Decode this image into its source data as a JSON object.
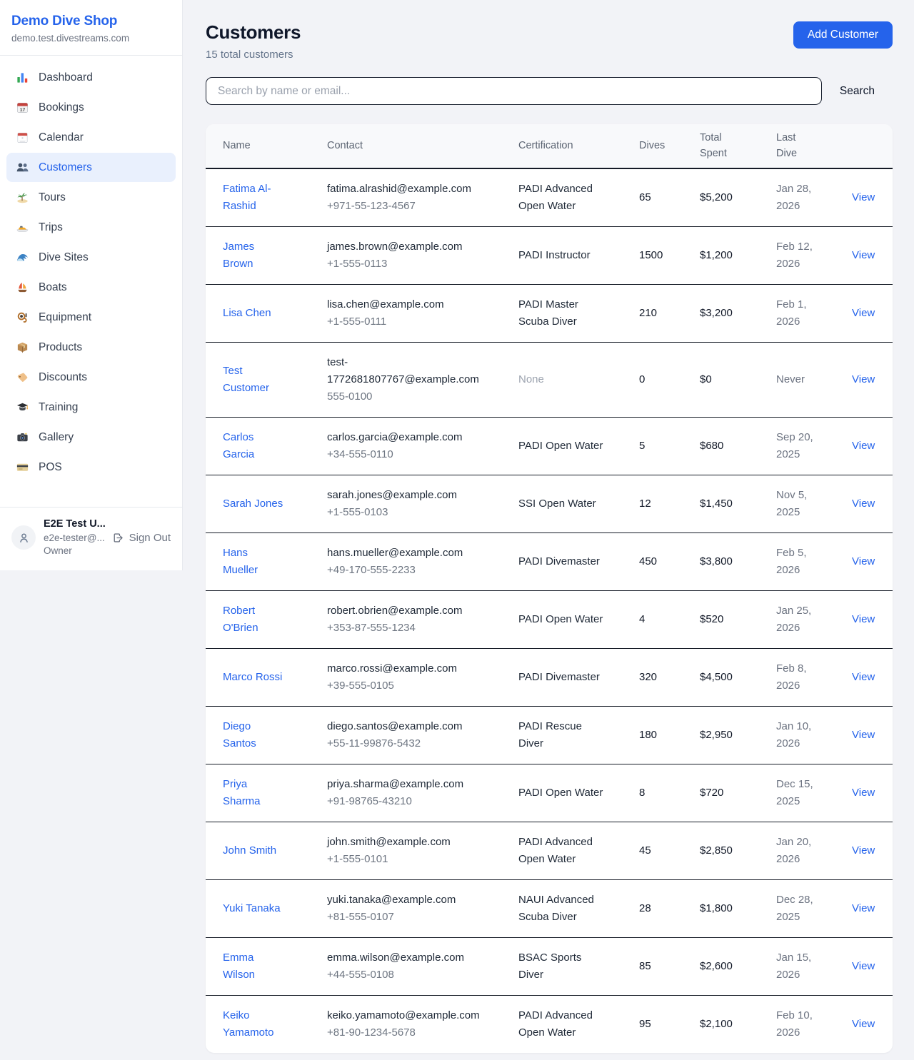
{
  "colors": {
    "accent": "#2563eb",
    "active_item_bg": "#e9f0fd",
    "table_border": "#151b26"
  },
  "sidebar": {
    "title": "Demo Dive Shop",
    "subdomain": "demo.test.divestreams.com",
    "items": [
      {
        "label": "Dashboard",
        "icon": "dashboard-icon",
        "active": false
      },
      {
        "label": "Bookings",
        "icon": "bookings-icon",
        "active": false
      },
      {
        "label": "Calendar",
        "icon": "calendar-icon",
        "active": false
      },
      {
        "label": "Customers",
        "icon": "customers-icon",
        "active": true
      },
      {
        "label": "Tours",
        "icon": "tours-icon",
        "active": false
      },
      {
        "label": "Trips",
        "icon": "trips-icon",
        "active": false
      },
      {
        "label": "Dive Sites",
        "icon": "dive-sites-icon",
        "active": false
      },
      {
        "label": "Boats",
        "icon": "boats-icon",
        "active": false
      },
      {
        "label": "Equipment",
        "icon": "equipment-icon",
        "active": false
      },
      {
        "label": "Products",
        "icon": "products-icon",
        "active": false
      },
      {
        "label": "Discounts",
        "icon": "discounts-icon",
        "active": false
      },
      {
        "label": "Training",
        "icon": "training-icon",
        "active": false
      },
      {
        "label": "Gallery",
        "icon": "gallery-icon",
        "active": false
      },
      {
        "label": "POS",
        "icon": "pos-icon",
        "active": false
      }
    ],
    "user": {
      "name": "E2E Test U...",
      "email": "e2e-tester@...",
      "role": "Owner",
      "sign_out_label": "Sign Out"
    }
  },
  "header": {
    "title": "Customers",
    "subtitle": "15 total customers",
    "add_button_label": "Add Customer"
  },
  "search": {
    "placeholder": "Search by name or email...",
    "button_label": "Search"
  },
  "table": {
    "columns": [
      "Name",
      "Contact",
      "Certification",
      "Dives",
      "Total Spent",
      "Last Dive",
      ""
    ],
    "rows": [
      {
        "name": "Fatima Al-Rashid",
        "email": "fatima.alrashid@example.com",
        "phone": "+971-55-123-4567",
        "certification": "PADI Advanced Open Water",
        "dives": "65",
        "total_spent": "$5,200",
        "last_dive": "Jan 28, 2026",
        "action": "View"
      },
      {
        "name": "James Brown",
        "email": "james.brown@example.com",
        "phone": "+1-555-0113",
        "certification": "PADI Instructor",
        "dives": "1500",
        "total_spent": "$1,200",
        "last_dive": "Feb 12, 2026",
        "action": "View"
      },
      {
        "name": "Lisa Chen",
        "email": "lisa.chen@example.com",
        "phone": "+1-555-0111",
        "certification": "PADI Master Scuba Diver",
        "dives": "210",
        "total_spent": "$3,200",
        "last_dive": "Feb 1, 2026",
        "action": "View"
      },
      {
        "name": "Test Customer",
        "email": "test-1772681807767@example.com",
        "phone": "555-0100",
        "certification": "None",
        "dives": "0",
        "total_spent": "$0",
        "last_dive": "Never",
        "action": "View"
      },
      {
        "name": "Carlos Garcia",
        "email": "carlos.garcia@example.com",
        "phone": "+34-555-0110",
        "certification": "PADI Open Water",
        "dives": "5",
        "total_spent": "$680",
        "last_dive": "Sep 20, 2025",
        "action": "View"
      },
      {
        "name": "Sarah Jones",
        "email": "sarah.jones@example.com",
        "phone": "+1-555-0103",
        "certification": "SSI Open Water",
        "dives": "12",
        "total_spent": "$1,450",
        "last_dive": "Nov 5, 2025",
        "action": "View"
      },
      {
        "name": "Hans Mueller",
        "email": "hans.mueller@example.com",
        "phone": "+49-170-555-2233",
        "certification": "PADI Divemaster",
        "dives": "450",
        "total_spent": "$3,800",
        "last_dive": "Feb 5, 2026",
        "action": "View"
      },
      {
        "name": "Robert O'Brien",
        "email": "robert.obrien@example.com",
        "phone": "+353-87-555-1234",
        "certification": "PADI Open Water",
        "dives": "4",
        "total_spent": "$520",
        "last_dive": "Jan 25, 2026",
        "action": "View"
      },
      {
        "name": "Marco Rossi",
        "email": "marco.rossi@example.com",
        "phone": "+39-555-0105",
        "certification": "PADI Divemaster",
        "dives": "320",
        "total_spent": "$4,500",
        "last_dive": "Feb 8, 2026",
        "action": "View"
      },
      {
        "name": "Diego Santos",
        "email": "diego.santos@example.com",
        "phone": "+55-11-99876-5432",
        "certification": "PADI Rescue Diver",
        "dives": "180",
        "total_spent": "$2,950",
        "last_dive": "Jan 10, 2026",
        "action": "View"
      },
      {
        "name": "Priya Sharma",
        "email": "priya.sharma@example.com",
        "phone": "+91-98765-43210",
        "certification": "PADI Open Water",
        "dives": "8",
        "total_spent": "$720",
        "last_dive": "Dec 15, 2025",
        "action": "View"
      },
      {
        "name": "John Smith",
        "email": "john.smith@example.com",
        "phone": "+1-555-0101",
        "certification": "PADI Advanced Open Water",
        "dives": "45",
        "total_spent": "$2,850",
        "last_dive": "Jan 20, 2026",
        "action": "View"
      },
      {
        "name": "Yuki Tanaka",
        "email": "yuki.tanaka@example.com",
        "phone": "+81-555-0107",
        "certification": "NAUI Advanced Scuba Diver",
        "dives": "28",
        "total_spent": "$1,800",
        "last_dive": "Dec 28, 2025",
        "action": "View"
      },
      {
        "name": "Emma Wilson",
        "email": "emma.wilson@example.com",
        "phone": "+44-555-0108",
        "certification": "BSAC Sports Diver",
        "dives": "85",
        "total_spent": "$2,600",
        "last_dive": "Jan 15, 2026",
        "action": "View"
      },
      {
        "name": "Keiko Yamamoto",
        "email": "keiko.yamamoto@example.com",
        "phone": "+81-90-1234-5678",
        "certification": "PADI Advanced Open Water",
        "dives": "95",
        "total_spent": "$2,100",
        "last_dive": "Feb 10, 2026",
        "action": "View"
      }
    ]
  }
}
